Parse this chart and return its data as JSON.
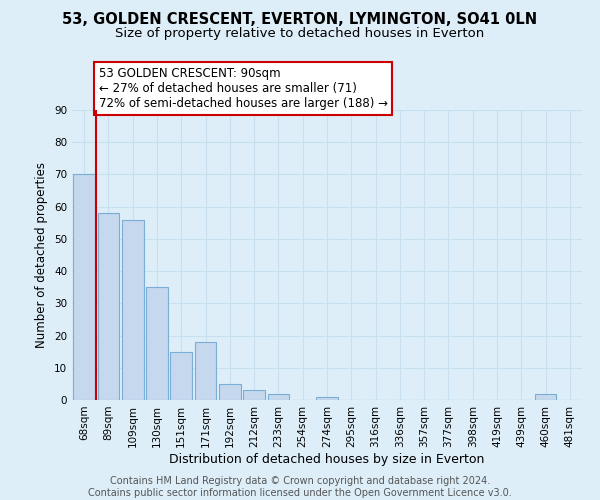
{
  "title": "53, GOLDEN CRESCENT, EVERTON, LYMINGTON, SO41 0LN",
  "subtitle": "Size of property relative to detached houses in Everton",
  "xlabel": "Distribution of detached houses by size in Everton",
  "ylabel": "Number of detached properties",
  "bar_labels": [
    "68sqm",
    "89sqm",
    "109sqm",
    "130sqm",
    "151sqm",
    "171sqm",
    "192sqm",
    "212sqm",
    "233sqm",
    "254sqm",
    "274sqm",
    "295sqm",
    "316sqm",
    "336sqm",
    "357sqm",
    "377sqm",
    "398sqm",
    "419sqm",
    "439sqm",
    "460sqm",
    "481sqm"
  ],
  "bar_values": [
    70,
    58,
    56,
    35,
    15,
    18,
    5,
    3,
    2,
    0,
    1,
    0,
    0,
    0,
    0,
    0,
    0,
    0,
    0,
    2,
    0
  ],
  "bar_color": "#c5d8ee",
  "bar_edge_color": "#7aaed6",
  "vline_color": "#cc0000",
  "annotation_line1": "53 GOLDEN CRESCENT: 90sqm",
  "annotation_line2": "← 27% of detached houses are smaller (71)",
  "annotation_line3": "72% of semi-detached houses are larger (188) →",
  "annotation_box_color": "#ffffff",
  "annotation_box_edge": "#cc0000",
  "ylim": [
    0,
    90
  ],
  "yticks": [
    0,
    10,
    20,
    30,
    40,
    50,
    60,
    70,
    80,
    90
  ],
  "grid_color": "#c8dff0",
  "background_color": "#ddeef8",
  "footer_line1": "Contains HM Land Registry data © Crown copyright and database right 2024.",
  "footer_line2": "Contains public sector information licensed under the Open Government Licence v3.0.",
  "title_fontsize": 10.5,
  "subtitle_fontsize": 9.5,
  "xlabel_fontsize": 9,
  "ylabel_fontsize": 8.5,
  "tick_fontsize": 7.5,
  "footer_fontsize": 7,
  "annotation_fontsize": 8.5
}
